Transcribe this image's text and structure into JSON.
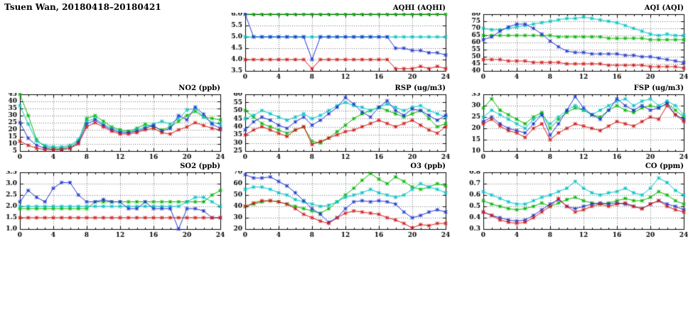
{
  "page_title": "Tsuen Wan, 20180418–20180421",
  "axis": {
    "xlim": [
      0,
      24
    ],
    "xticks": [
      "0",
      "4",
      "8",
      "12",
      "16",
      "20",
      "24"
    ],
    "points_per_series": 25,
    "x_start": 0,
    "x_step": 1
  },
  "colors": {
    "green": "#00b400",
    "cyan": "#00c3c3",
    "blue": "#2036cc",
    "red": "#d01818"
  },
  "chart_data": [
    {
      "id": "aqhi",
      "type": "line",
      "title": "AQHI (AQHI)",
      "ylim": [
        3.5,
        6.0
      ],
      "yticks": [
        "3.5",
        "4.0",
        "4.5",
        "5.0",
        "5.5",
        "6.0"
      ],
      "series": [
        {
          "name": "green",
          "color": "#00b400",
          "values": [
            6,
            6,
            6,
            6,
            6,
            6,
            6,
            6,
            6,
            6,
            6,
            6,
            6,
            6,
            6,
            6,
            6,
            6,
            6,
            6,
            6,
            6,
            6,
            6,
            6
          ]
        },
        {
          "name": "cyan",
          "color": "#00c3c3",
          "values": [
            5,
            5,
            5,
            5,
            5,
            5,
            5,
            5,
            5,
            5,
            5,
            5,
            5,
            5,
            5,
            5,
            5,
            5,
            5,
            5,
            5,
            5,
            5,
            5,
            5
          ]
        },
        {
          "name": "blue",
          "color": "#2036cc",
          "values": [
            6,
            5,
            5,
            5,
            5,
            5,
            5,
            5,
            4,
            5,
            5,
            5,
            5,
            5,
            5,
            5,
            5,
            5,
            4.5,
            4.5,
            4.4,
            4.4,
            4.3,
            4.3,
            4.2
          ]
        },
        {
          "name": "red",
          "color": "#d01818",
          "values": [
            4,
            4,
            4,
            4,
            4,
            4,
            4,
            4,
            3.6,
            4,
            4,
            4,
            4,
            4,
            4,
            4,
            4,
            4,
            3.6,
            3.6,
            3.6,
            3.7,
            3.6,
            3.7,
            3.6
          ]
        }
      ]
    },
    {
      "id": "aqi",
      "type": "line",
      "title": "AQI (AQI)",
      "ylim": [
        40,
        80
      ],
      "yticks": [
        "40",
        "45",
        "50",
        "55",
        "60",
        "65",
        "70",
        "75",
        "80"
      ],
      "series": [
        {
          "name": "green",
          "color": "#00b400",
          "values": [
            65,
            65,
            65,
            65,
            65,
            65,
            65,
            65,
            65,
            64,
            64,
            64,
            64,
            64,
            64,
            63,
            63,
            63,
            63,
            63,
            62,
            62,
            62,
            62,
            62
          ]
        },
        {
          "name": "cyan",
          "color": "#00c3c3",
          "values": [
            70,
            69,
            69,
            70,
            71,
            72,
            73,
            74,
            75,
            76,
            77,
            77,
            78,
            77,
            76,
            75,
            74,
            72,
            70,
            68,
            66,
            65,
            66,
            65,
            65
          ]
        },
        {
          "name": "blue",
          "color": "#2036cc",
          "values": [
            62,
            64,
            68,
            71,
            73,
            73,
            70,
            66,
            61,
            57,
            54,
            53,
            53,
            52,
            52,
            52,
            52,
            51,
            51,
            50,
            50,
            49,
            48,
            47,
            46
          ]
        },
        {
          "name": "red",
          "color": "#d01818",
          "values": [
            48,
            48,
            48,
            47,
            47,
            47,
            46,
            46,
            46,
            46,
            45,
            45,
            45,
            45,
            45,
            44,
            44,
            44,
            44,
            44,
            43,
            43,
            43,
            43,
            42
          ]
        }
      ]
    },
    {
      "id": "no2",
      "type": "line",
      "title": "NO2 (ppb)",
      "ylim": [
        5,
        45
      ],
      "yticks": [
        "5",
        "10",
        "15",
        "20",
        "25",
        "30",
        "35",
        "40",
        "45"
      ],
      "series": [
        {
          "name": "green",
          "color": "#00b400",
          "values": [
            45,
            30,
            13,
            8,
            7,
            7,
            8,
            12,
            28,
            30,
            26,
            22,
            20,
            19,
            21,
            24,
            22,
            20,
            22,
            26,
            30,
            33,
            29,
            28,
            27
          ]
        },
        {
          "name": "cyan",
          "color": "#00c3c3",
          "values": [
            37,
            24,
            12,
            9,
            8,
            8,
            9,
            13,
            26,
            28,
            24,
            21,
            19,
            18,
            20,
            22,
            24,
            26,
            24,
            28,
            34,
            35,
            29,
            25,
            24
          ]
        },
        {
          "name": "blue",
          "color": "#2036cc",
          "values": [
            25,
            14,
            9,
            7,
            6,
            6,
            7,
            11,
            24,
            27,
            23,
            20,
            18,
            18,
            19,
            21,
            23,
            19,
            21,
            30,
            27,
            36,
            31,
            24,
            21
          ]
        },
        {
          "name": "red",
          "color": "#d01818",
          "values": [
            12,
            9,
            7,
            6,
            6,
            6,
            7,
            10,
            22,
            25,
            22,
            19,
            17,
            17,
            18,
            20,
            21,
            18,
            17,
            20,
            22,
            25,
            23,
            21,
            20
          ]
        }
      ]
    },
    {
      "id": "rsp",
      "type": "line",
      "title": "RSP (ug/m3)",
      "ylim": [
        25,
        60
      ],
      "yticks": [
        "25",
        "30",
        "35",
        "40",
        "45",
        "50",
        "55",
        "60"
      ],
      "series": [
        {
          "name": "green",
          "color": "#00b400",
          "values": [
            50,
            46,
            42,
            40,
            38,
            36,
            38,
            40,
            31,
            30,
            33,
            37,
            41,
            45,
            48,
            50,
            52,
            50,
            48,
            46,
            48,
            50,
            45,
            40,
            42
          ]
        },
        {
          "name": "cyan",
          "color": "#00c3c3",
          "values": [
            45,
            47,
            50,
            48,
            46,
            44,
            46,
            48,
            45,
            47,
            50,
            53,
            55,
            53,
            52,
            50,
            52,
            54,
            52,
            50,
            52,
            53,
            50,
            48,
            46
          ]
        },
        {
          "name": "blue",
          "color": "#2036cc",
          "values": [
            38,
            43,
            46,
            44,
            41,
            39,
            43,
            46,
            41,
            44,
            48,
            52,
            58,
            54,
            49,
            46,
            52,
            56,
            50,
            47,
            51,
            50,
            47,
            44,
            47
          ]
        },
        {
          "name": "red",
          "color": "#d01818",
          "values": [
            35,
            38,
            40,
            38,
            36,
            34,
            38,
            40,
            29,
            31,
            33,
            35,
            37,
            38,
            40,
            42,
            44,
            42,
            40,
            42,
            44,
            41,
            38,
            36,
            40
          ]
        }
      ]
    },
    {
      "id": "fsp",
      "type": "line",
      "title": "FSP (ug/m3)",
      "ylim": [
        10,
        35
      ],
      "yticks": [
        "10",
        "15",
        "20",
        "25",
        "30",
        "35"
      ],
      "series": [
        {
          "name": "green",
          "color": "#00b400",
          "values": [
            29,
            33,
            28,
            26,
            24,
            22,
            25,
            27,
            20,
            24,
            27,
            29,
            28,
            26,
            25,
            28,
            30,
            28,
            27,
            29,
            30,
            29,
            31,
            28,
            25
          ]
        },
        {
          "name": "cyan",
          "color": "#00c3c3",
          "values": [
            25,
            28,
            26,
            24,
            22,
            20,
            24,
            26,
            22,
            25,
            28,
            30,
            28,
            26,
            28,
            30,
            32,
            33,
            30,
            32,
            33,
            30,
            32,
            30,
            26
          ]
        },
        {
          "name": "blue",
          "color": "#2036cc",
          "values": [
            23,
            25,
            22,
            20,
            19,
            18,
            22,
            26,
            17,
            22,
            28,
            34,
            29,
            26,
            24,
            28,
            33,
            30,
            28,
            30,
            28,
            29,
            31,
            26,
            24
          ]
        },
        {
          "name": "red",
          "color": "#d01818",
          "values": [
            22,
            24,
            21,
            19,
            18,
            16,
            20,
            22,
            15,
            18,
            20,
            22,
            21,
            20,
            19,
            21,
            23,
            22,
            21,
            23,
            25,
            24,
            30,
            26,
            23
          ]
        }
      ]
    },
    {
      "id": "so2",
      "type": "line",
      "title": "SO2 (ppb)",
      "ylim": [
        1.0,
        3.5
      ],
      "yticks": [
        "1.0",
        "1.5",
        "2.0",
        "2.5",
        "3.0",
        "3.5"
      ],
      "series": [
        {
          "name": "green",
          "color": "#00b400",
          "values": [
            1.9,
            1.9,
            1.9,
            1.9,
            1.9,
            1.9,
            1.9,
            1.9,
            1.9,
            2.2,
            2.2,
            2.2,
            2.2,
            2.2,
            2.2,
            2.2,
            2.2,
            2.2,
            2.2,
            2.2,
            2.2,
            2.2,
            2.2,
            2.5,
            2.7
          ]
        },
        {
          "name": "cyan",
          "color": "#00c3c3",
          "values": [
            2,
            2,
            2,
            2,
            2,
            2,
            2,
            2,
            2,
            2,
            2,
            2,
            2,
            2,
            2,
            2,
            2,
            2,
            2,
            2,
            2.2,
            2.4,
            2.4,
            2.2,
            2
          ]
        },
        {
          "name": "blue",
          "color": "#2036cc",
          "values": [
            2.2,
            2.7,
            2.4,
            2.2,
            2.8,
            3.05,
            3.05,
            2.5,
            2.2,
            2.2,
            2.3,
            2.2,
            2.2,
            1.9,
            1.9,
            2.2,
            1.9,
            1.9,
            1.9,
            1.0,
            1.9,
            1.9,
            1.8,
            1.5,
            1.5
          ]
        },
        {
          "name": "red",
          "color": "#d01818",
          "values": [
            1.5,
            1.5,
            1.5,
            1.5,
            1.5,
            1.5,
            1.5,
            1.5,
            1.5,
            1.5,
            1.5,
            1.5,
            1.5,
            1.5,
            1.5,
            1.5,
            1.5,
            1.5,
            1.5,
            1.5,
            1.5,
            1.5,
            1.5,
            1.5,
            1.5
          ]
        }
      ]
    },
    {
      "id": "o3",
      "type": "line",
      "title": "O3 (ppb)",
      "ylim": [
        20,
        70
      ],
      "yticks": [
        "20",
        "30",
        "40",
        "50",
        "60",
        "70"
      ],
      "series": [
        {
          "name": "green",
          "color": "#00b400",
          "values": [
            40,
            42,
            44,
            45,
            44,
            42,
            40,
            38,
            36,
            34,
            38,
            44,
            50,
            56,
            63,
            69,
            64,
            60,
            66,
            62,
            57,
            55,
            57,
            60,
            58
          ]
        },
        {
          "name": "cyan",
          "color": "#00c3c3",
          "values": [
            55,
            57,
            57,
            55,
            52,
            50,
            46,
            44,
            42,
            40,
            41,
            44,
            48,
            50,
            52,
            55,
            52,
            50,
            48,
            50,
            55,
            60,
            57,
            55,
            52
          ]
        },
        {
          "name": "blue",
          "color": "#2036cc",
          "values": [
            68,
            65,
            65,
            66,
            62,
            58,
            52,
            45,
            38,
            33,
            26,
            30,
            38,
            44,
            45,
            44,
            45,
            44,
            42,
            35,
            30,
            32,
            35,
            37,
            35
          ]
        },
        {
          "name": "red",
          "color": "#d01818",
          "values": [
            40,
            43,
            45,
            45,
            44,
            42,
            38,
            33,
            30,
            27,
            25,
            30,
            34,
            36,
            35,
            34,
            33,
            30,
            28,
            25,
            21,
            24,
            23,
            25,
            25
          ]
        }
      ]
    },
    {
      "id": "co",
      "type": "line",
      "title": "CO (ppm)",
      "ylim": [
        0.3,
        0.8
      ],
      "yticks": [
        "0.3",
        "0.4",
        "0.5",
        "0.6",
        "0.7",
        "0.8"
      ],
      "series": [
        {
          "name": "green",
          "color": "#00b400",
          "values": [
            0.55,
            0.52,
            0.5,
            0.48,
            0.47,
            0.48,
            0.5,
            0.53,
            0.5,
            0.53,
            0.56,
            0.58,
            0.55,
            0.53,
            0.52,
            0.53,
            0.55,
            0.57,
            0.55,
            0.55,
            0.58,
            0.63,
            0.6,
            0.55,
            0.52
          ]
        },
        {
          "name": "cyan",
          "color": "#00c3c3",
          "values": [
            0.63,
            0.6,
            0.57,
            0.54,
            0.52,
            0.52,
            0.55,
            0.58,
            0.6,
            0.63,
            0.66,
            0.72,
            0.66,
            0.62,
            0.6,
            0.62,
            0.63,
            0.66,
            0.62,
            0.6,
            0.66,
            0.75,
            0.71,
            0.64,
            0.6
          ]
        },
        {
          "name": "blue",
          "color": "#2036cc",
          "values": [
            0.45,
            0.42,
            0.4,
            0.38,
            0.37,
            0.38,
            0.42,
            0.47,
            0.52,
            0.56,
            0.5,
            0.48,
            0.5,
            0.52,
            0.53,
            0.52,
            0.53,
            0.52,
            0.5,
            0.48,
            0.52,
            0.55,
            0.52,
            0.5,
            0.47
          ]
        },
        {
          "name": "red",
          "color": "#d01818",
          "values": [
            0.45,
            0.42,
            0.38,
            0.36,
            0.35,
            0.36,
            0.4,
            0.45,
            0.5,
            0.57,
            0.5,
            0.45,
            0.47,
            0.5,
            0.52,
            0.5,
            0.52,
            0.53,
            0.5,
            0.48,
            0.52,
            0.55,
            0.5,
            0.47,
            0.45
          ]
        }
      ]
    }
  ]
}
